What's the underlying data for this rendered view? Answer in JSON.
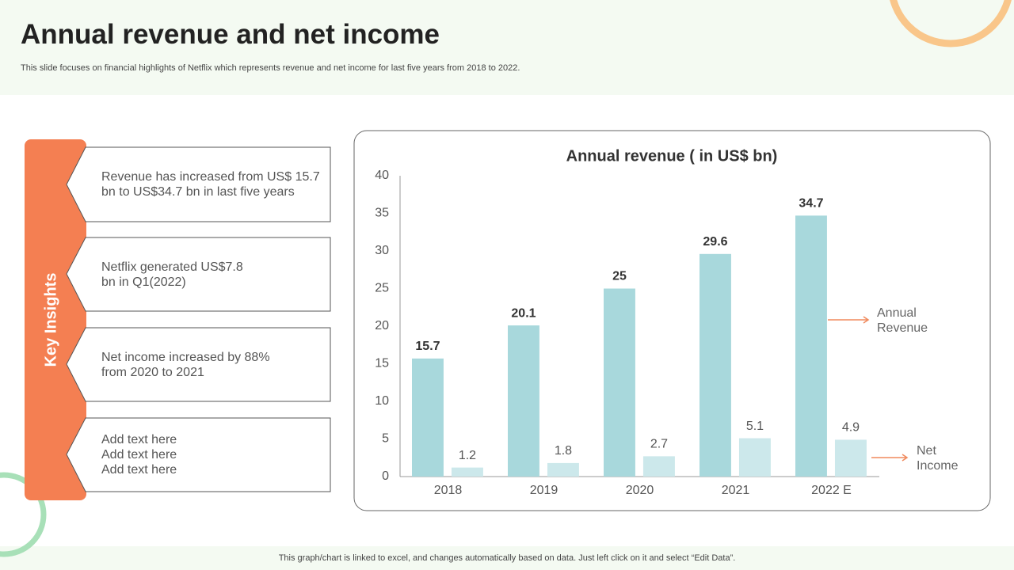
{
  "header": {
    "title": "Annual revenue and net income",
    "subtitle": "This slide focuses on financial highlights of Netflix which represents revenue and net income for last five years from 2018 to 2022."
  },
  "insights": {
    "label": "Key Insights",
    "items": [
      [
        "Revenue  has increased from US$ 15.7",
        "bn to US$34.7 bn in last five years"
      ],
      [
        "Netflix generated US$7.8",
        "bn in Q1(2022)"
      ],
      [
        "Net income increased by 88%",
        "from 2020 to 2021"
      ],
      [
        "Add text here",
        "Add text here",
        "Add text here"
      ]
    ]
  },
  "chart_data": {
    "type": "bar",
    "title": "Annual revenue ( in US$ bn)",
    "categories": [
      "2018",
      "2019",
      "2020",
      "2021",
      "2022 E"
    ],
    "series": [
      {
        "name": "Annual Revenue",
        "color": "#a8d8dc",
        "values": [
          15.7,
          20.1,
          25,
          29.6,
          34.7
        ]
      },
      {
        "name": "Net Income",
        "color": "#cce8eb",
        "values": [
          1.2,
          1.8,
          2.7,
          5.1,
          4.9
        ]
      }
    ],
    "ylim": [
      0,
      40
    ],
    "yticks": [
      0,
      5,
      10,
      15,
      20,
      25,
      30,
      35,
      40
    ]
  },
  "footer": {
    "note": "This graph/chart is linked to excel, and changes automatically based on data. Just left click on it and select “Edit Data”."
  }
}
